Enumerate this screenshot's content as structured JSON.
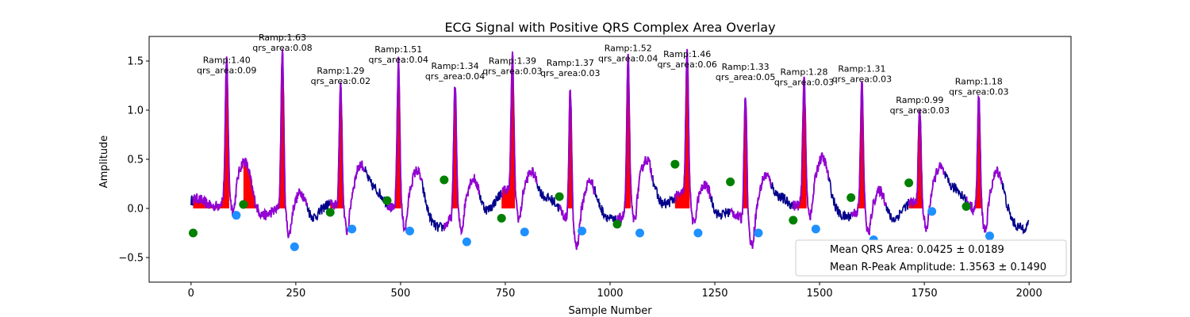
{
  "chart_data": {
    "type": "line",
    "title": "ECG Signal with Positive QRS Complex Area Overlay",
    "xlabel": "Sample Number",
    "ylabel": "Amplitude",
    "xlim": [
      -100,
      2100
    ],
    "ylim": [
      -0.75,
      1.75
    ],
    "xticks": [
      0,
      250,
      500,
      750,
      1000,
      1250,
      1500,
      1750,
      2000
    ],
    "yticks": [
      -0.5,
      0.0,
      0.5,
      1.0,
      1.5
    ],
    "grid": false,
    "colors": {
      "signal": "#00008b",
      "qrs_segment": "#9400d3",
      "qrs_area": "#ff0000",
      "q_onset": "#008000",
      "s_offset": "#1e90ff"
    },
    "beats": [
      {
        "r_x": 85,
        "r_amp": 1.4,
        "qrs_area": 0.09,
        "label_line1": "Ramp:1.40",
        "label_line2": "qrs_area:0.09"
      },
      {
        "r_x": 218,
        "r_amp": 1.63,
        "qrs_area": 0.08,
        "label_line1": "Ramp:1.63",
        "label_line2": "qrs_area:0.08"
      },
      {
        "r_x": 357,
        "r_amp": 1.29,
        "qrs_area": 0.02,
        "label_line1": "Ramp:1.29",
        "label_line2": "qrs_area:0.02"
      },
      {
        "r_x": 495,
        "r_amp": 1.51,
        "qrs_area": 0.04,
        "label_line1": "Ramp:1.51",
        "label_line2": "qrs_area:0.04"
      },
      {
        "r_x": 630,
        "r_amp": 1.34,
        "qrs_area": 0.04,
        "label_line1": "Ramp:1.34",
        "label_line2": "qrs_area:0.04"
      },
      {
        "r_x": 767,
        "r_amp": 1.39,
        "qrs_area": 0.03,
        "label_line1": "Ramp:1.39",
        "label_line2": "qrs_area:0.03"
      },
      {
        "r_x": 905,
        "r_amp": 1.37,
        "qrs_area": 0.03,
        "label_line1": "Ramp:1.37",
        "label_line2": "qrs_area:0.03"
      },
      {
        "r_x": 1043,
        "r_amp": 1.52,
        "qrs_area": 0.04,
        "label_line1": "Ramp:1.52",
        "label_line2": "qrs_area:0.04"
      },
      {
        "r_x": 1184,
        "r_amp": 1.46,
        "qrs_area": 0.06,
        "label_line1": "Ramp:1.46",
        "label_line2": "qrs_area:0.06"
      },
      {
        "r_x": 1323,
        "r_amp": 1.33,
        "qrs_area": 0.05,
        "label_line1": "Ramp:1.33",
        "label_line2": "qrs_area:0.05"
      },
      {
        "r_x": 1463,
        "r_amp": 1.28,
        "qrs_area": 0.03,
        "label_line1": "Ramp:1.28",
        "label_line2": "qrs_area:0.03"
      },
      {
        "r_x": 1601,
        "r_amp": 1.31,
        "qrs_area": 0.03,
        "label_line1": "Ramp:1.31",
        "label_line2": "qrs_area:0.03"
      },
      {
        "r_x": 1739,
        "r_amp": 0.99,
        "qrs_area": 0.03,
        "label_line1": "Ramp:0.99",
        "label_line2": "qrs_area:0.03"
      },
      {
        "r_x": 1880,
        "r_amp": 1.18,
        "qrs_area": 0.03,
        "label_line1": "Ramp:1.18",
        "label_line2": "qrs_area:0.03"
      }
    ],
    "q_onsets": [
      [
        5,
        -0.25
      ],
      [
        125,
        0.04
      ],
      [
        332,
        -0.04
      ],
      [
        468,
        0.08
      ],
      [
        604,
        0.29
      ],
      [
        741,
        -0.1
      ],
      [
        879,
        0.12
      ],
      [
        1017,
        -0.16
      ],
      [
        1155,
        0.45
      ],
      [
        1287,
        0.27
      ],
      [
        1437,
        -0.12
      ],
      [
        1575,
        0.11
      ],
      [
        1713,
        0.26
      ],
      [
        1850,
        0.02
      ]
    ],
    "s_offsets": [
      [
        108,
        -0.07
      ],
      [
        247,
        -0.39
      ],
      [
        384,
        -0.21
      ],
      [
        522,
        -0.23
      ],
      [
        658,
        -0.34
      ],
      [
        796,
        -0.24
      ],
      [
        933,
        -0.23
      ],
      [
        1071,
        -0.25
      ],
      [
        1210,
        -0.25
      ],
      [
        1354,
        -0.25
      ],
      [
        1491,
        -0.21
      ],
      [
        1629,
        -0.32
      ],
      [
        1768,
        -0.03
      ],
      [
        1906,
        -0.28
      ]
    ],
    "legend": {
      "placement": "lower right",
      "entries": [
        {
          "label": "Mean QRS Area: 0.0425 ± 0.0189"
        },
        {
          "label": "Mean R-Peak Amplitude: 1.3563 ± 0.1490"
        }
      ]
    }
  }
}
